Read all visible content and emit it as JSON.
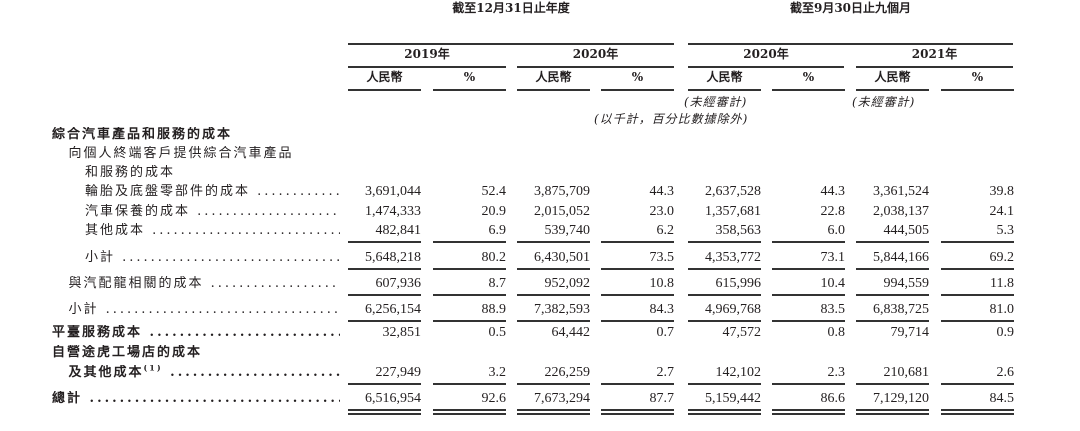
{
  "header": {
    "group_fy": "截至12月31日止年度",
    "group_9m": "截至9月30日止九個月",
    "years": [
      "2019年",
      "2020年",
      "2020年",
      "2021年"
    ],
    "rmb_label": "人民幣",
    "pct_label": "%",
    "unaudited": "(未經審計)",
    "unit_note": "(以千計，百分比數據除外)"
  },
  "rows": [
    {
      "label": "綜合汽車產品和服務的成本",
      "indent": 0,
      "bold": true,
      "values": []
    },
    {
      "label": "向個人終端客戶提供綜合汽車產品",
      "indent": 1,
      "bold": false,
      "values": []
    },
    {
      "label": "和服務的成本",
      "indent": 2,
      "bold": false,
      "values": []
    },
    {
      "label": "輪胎及底盤零部件的成本",
      "indent": 2,
      "bold": false,
      "values": [
        "3,691,044",
        "52.4",
        "3,875,709",
        "44.3",
        "2,637,528",
        "44.3",
        "3,361,524",
        "39.8"
      ]
    },
    {
      "label": "汽車保養的成本",
      "indent": 2,
      "bold": false,
      "values": [
        "1,474,333",
        "20.9",
        "2,015,052",
        "23.0",
        "1,357,681",
        "22.8",
        "2,038,137",
        "24.1"
      ]
    },
    {
      "label": "其他成本",
      "indent": 2,
      "bold": false,
      "values": [
        "482,841",
        "6.9",
        "539,740",
        "6.2",
        "358,563",
        "6.0",
        "444,505",
        "5.3"
      ]
    },
    {
      "label": "小計",
      "indent": 2,
      "bold": false,
      "values": [
        "5,648,218",
        "80.2",
        "6,430,501",
        "73.5",
        "4,353,772",
        "73.1",
        "5,844,166",
        "69.2"
      ]
    },
    {
      "label": "與汽配龍相關的成本",
      "indent": 1,
      "bold": false,
      "values": [
        "607,936",
        "8.7",
        "952,092",
        "10.8",
        "615,996",
        "10.4",
        "994,559",
        "11.8"
      ]
    },
    {
      "label": "小計",
      "indent": 1,
      "bold": false,
      "values": [
        "6,256,154",
        "88.9",
        "7,382,593",
        "84.3",
        "4,969,768",
        "83.5",
        "6,838,725",
        "81.0"
      ]
    },
    {
      "label": "平臺服務成本",
      "indent": 0,
      "bold": true,
      "values": [
        "32,851",
        "0.5",
        "64,442",
        "0.7",
        "47,572",
        "0.8",
        "79,714",
        "0.9"
      ]
    },
    {
      "label": "自營途虎工場店的成本",
      "indent": 0,
      "bold": true,
      "values": []
    },
    {
      "label": "及其他成本",
      "note": "(1)",
      "indent": 1,
      "bold": true,
      "values": [
        "227,949",
        "3.2",
        "226,259",
        "2.7",
        "142,102",
        "2.3",
        "210,681",
        "2.6"
      ]
    },
    {
      "label": "總計",
      "indent": 0,
      "bold": true,
      "values": [
        "6,516,954",
        "92.6",
        "7,673,294",
        "87.7",
        "5,159,442",
        "86.6",
        "7,129,120",
        "84.5"
      ]
    }
  ]
}
